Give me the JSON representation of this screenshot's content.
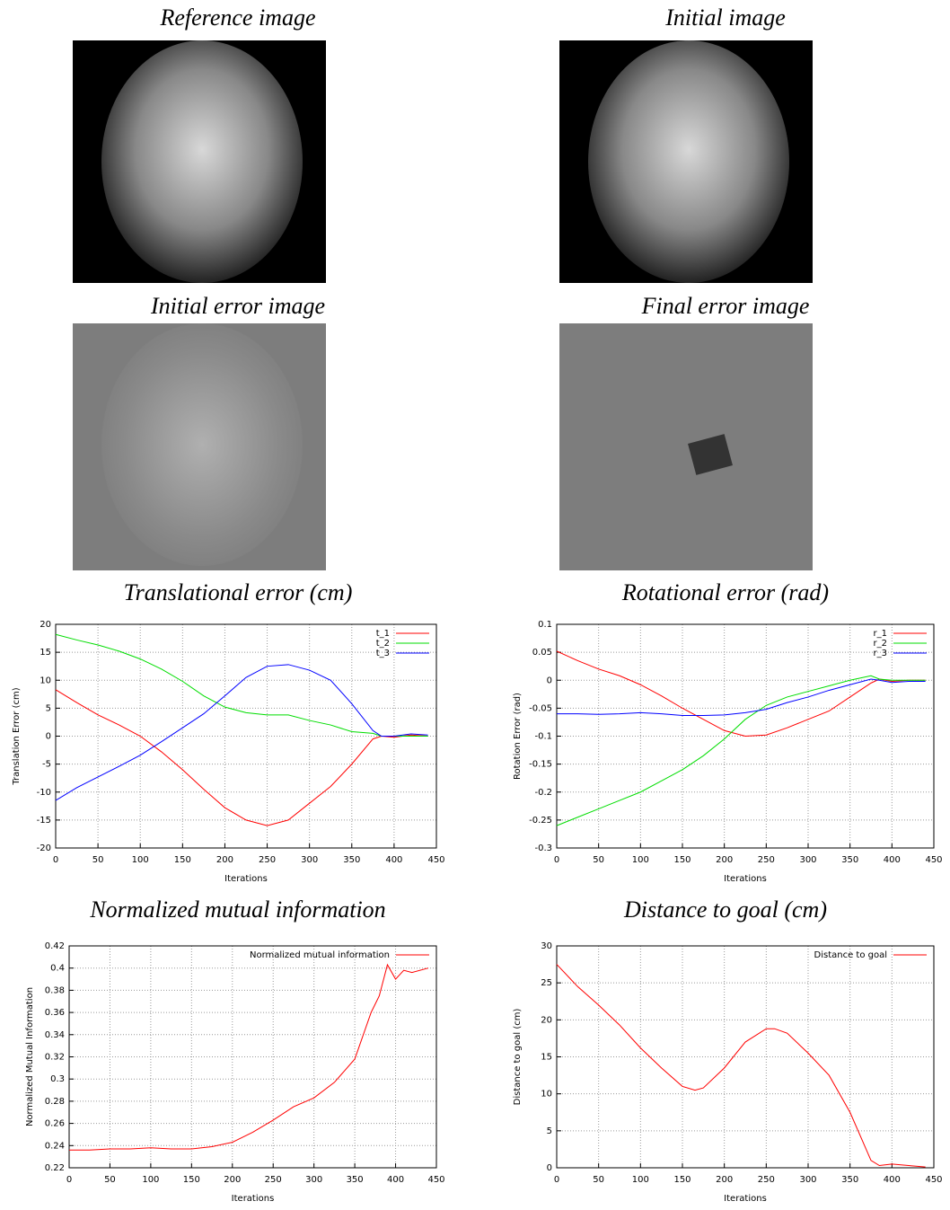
{
  "images": [
    {
      "title": "Reference image"
    },
    {
      "title": "Initial image"
    },
    {
      "title": "Initial error image"
    },
    {
      "title": "Final error image"
    }
  ],
  "chart_data": [
    {
      "type": "line",
      "title": "Translational error (cm)",
      "xlabel": "Iterations",
      "ylabel": "Translation Error (cm)",
      "x": [
        0,
        25,
        50,
        75,
        100,
        125,
        150,
        175,
        200,
        225,
        250,
        275,
        300,
        325,
        350,
        375,
        385,
        400,
        420,
        440
      ],
      "xlim": [
        0,
        450
      ],
      "xticks": [
        0,
        50,
        100,
        150,
        200,
        250,
        300,
        350,
        400,
        450
      ],
      "ylim": [
        -20,
        20
      ],
      "yticks": [
        -20,
        -15,
        -10,
        -5,
        0,
        5,
        10,
        15,
        20
      ],
      "grid": true,
      "legend": "upper right",
      "series": [
        {
          "name": "t_1",
          "color": "#ff0000",
          "values": [
            8.3,
            6,
            3.8,
            2,
            0,
            -2.8,
            -6,
            -9.5,
            -12.8,
            -15,
            -16,
            -15,
            -12,
            -9,
            -5,
            -0.5,
            0,
            -0.2,
            0.2,
            0
          ]
        },
        {
          "name": "t_2",
          "color": "#00dd00",
          "values": [
            18.2,
            17.2,
            16.3,
            15.2,
            13.8,
            12,
            9.8,
            7.2,
            5.2,
            4.2,
            3.8,
            3.8,
            2.8,
            2,
            0.8,
            0.5,
            0,
            0,
            0,
            0
          ]
        },
        {
          "name": "t_3",
          "color": "#0000ff",
          "values": [
            -11.5,
            -9.2,
            -7.3,
            -5.4,
            -3.4,
            -1,
            1.5,
            4,
            7.2,
            10.5,
            12.5,
            12.8,
            11.8,
            10,
            5.8,
            1,
            0,
            0,
            0.4,
            0.2
          ]
        }
      ]
    },
    {
      "type": "line",
      "title": "Rotational error (rad)",
      "xlabel": "Iterations",
      "ylabel": "Rotation Error (rad)",
      "x": [
        0,
        25,
        50,
        75,
        100,
        125,
        150,
        175,
        200,
        225,
        250,
        275,
        300,
        325,
        350,
        375,
        385,
        400,
        420,
        440
      ],
      "xlim": [
        0,
        450
      ],
      "xticks": [
        0,
        50,
        100,
        150,
        200,
        250,
        300,
        350,
        400,
        450
      ],
      "ylim": [
        -0.3,
        0.1
      ],
      "yticks": [
        -0.3,
        -0.25,
        -0.2,
        -0.15,
        -0.1,
        -0.05,
        0,
        0.05,
        0.1
      ],
      "grid": true,
      "legend": "upper right",
      "series": [
        {
          "name": "r_1",
          "color": "#ff0000",
          "values": [
            0.052,
            0.035,
            0.02,
            0.008,
            -0.008,
            -0.028,
            -0.05,
            -0.07,
            -0.09,
            -0.1,
            -0.098,
            -0.085,
            -0.07,
            -0.055,
            -0.03,
            -0.005,
            0.002,
            -0.002,
            0,
            0
          ]
        },
        {
          "name": "r_2",
          "color": "#00dd00",
          "values": [
            -0.26,
            -0.245,
            -0.23,
            -0.215,
            -0.2,
            -0.18,
            -0.16,
            -0.135,
            -0.105,
            -0.07,
            -0.045,
            -0.03,
            -0.02,
            -0.01,
            0,
            0.008,
            0.002,
            0,
            0,
            0
          ]
        },
        {
          "name": "r_3",
          "color": "#0000ff",
          "values": [
            -0.06,
            -0.06,
            -0.061,
            -0.06,
            -0.058,
            -0.06,
            -0.063,
            -0.063,
            -0.062,
            -0.058,
            -0.052,
            -0.04,
            -0.03,
            -0.018,
            -0.008,
            0.002,
            0,
            -0.004,
            -0.002,
            -0.002
          ]
        }
      ]
    },
    {
      "type": "line",
      "title": "Normalized mutual information",
      "xlabel": "Iterations",
      "ylabel": "Normalized Mutual Information",
      "x": [
        0,
        25,
        50,
        75,
        100,
        125,
        150,
        175,
        200,
        225,
        250,
        275,
        300,
        325,
        350,
        370,
        380,
        390,
        400,
        410,
        420,
        440
      ],
      "xlim": [
        0,
        450
      ],
      "xticks": [
        0,
        50,
        100,
        150,
        200,
        250,
        300,
        350,
        400,
        450
      ],
      "ylim": [
        0.22,
        0.42
      ],
      "yticks": [
        0.22,
        0.24,
        0.26,
        0.28,
        0.3,
        0.32,
        0.34,
        0.36,
        0.38,
        0.4,
        0.42
      ],
      "grid": true,
      "legend": "upper right",
      "series": [
        {
          "name": "Normalized mutual information",
          "color": "#ff0000",
          "values": [
            0.236,
            0.236,
            0.237,
            0.237,
            0.238,
            0.237,
            0.237,
            0.239,
            0.243,
            0.252,
            0.263,
            0.275,
            0.283,
            0.297,
            0.318,
            0.36,
            0.375,
            0.403,
            0.39,
            0.398,
            0.396,
            0.4
          ]
        }
      ]
    },
    {
      "type": "line",
      "title": "Distance to goal (cm)",
      "xlabel": "Iterations",
      "ylabel": "Distance to goal (cm)",
      "x": [
        0,
        25,
        50,
        75,
        100,
        125,
        150,
        165,
        175,
        200,
        225,
        250,
        260,
        275,
        300,
        325,
        350,
        375,
        385,
        400,
        420,
        440
      ],
      "xlim": [
        0,
        450
      ],
      "xticks": [
        0,
        50,
        100,
        150,
        200,
        250,
        300,
        350,
        400,
        450
      ],
      "ylim": [
        0,
        30
      ],
      "yticks": [
        0,
        5,
        10,
        15,
        20,
        25,
        30
      ],
      "grid": true,
      "legend": "upper right",
      "series": [
        {
          "name": "Distance to goal",
          "color": "#ff0000",
          "values": [
            27.5,
            24.5,
            22,
            19.3,
            16.2,
            13.5,
            11,
            10.5,
            10.8,
            13.5,
            17,
            18.8,
            18.8,
            18.2,
            15.5,
            12.5,
            7.5,
            1,
            0.3,
            0.5,
            0.3,
            0.1
          ]
        }
      ]
    }
  ]
}
